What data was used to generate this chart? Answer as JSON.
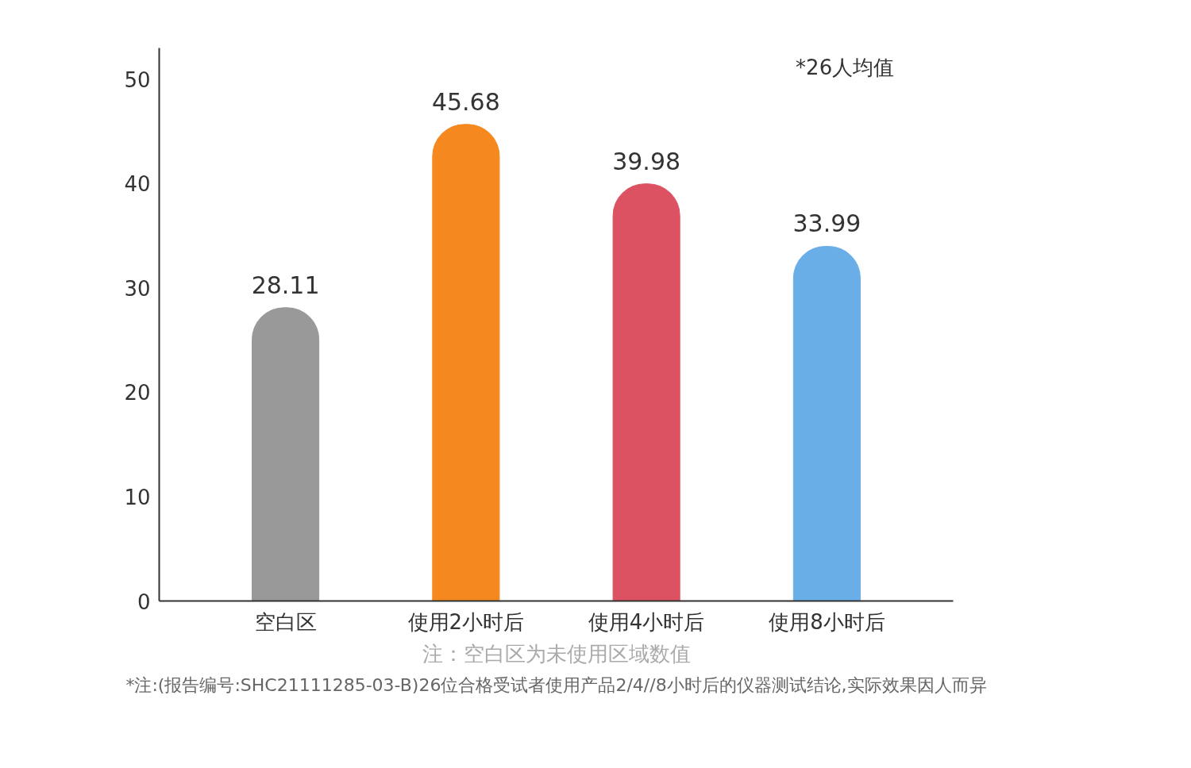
{
  "chart_data": {
    "type": "bar",
    "categories": [
      "空白区",
      "使用2小时后",
      "使用4小时后",
      "使用8小时后"
    ],
    "values": [
      28.11,
      45.68,
      39.98,
      33.99
    ],
    "colors": [
      "#999999",
      "#f5881f",
      "#dc5262",
      "#6aaee8"
    ],
    "ylim": [
      0,
      53
    ],
    "yticks": [
      0,
      10,
      20,
      30,
      40,
      50
    ],
    "grid": false,
    "data_labels": true,
    "annotations": [
      "*26人均值",
      "注：空白区为未使用区域数值",
      "*注:(报告编号:SHC21111285-03-B)26位合格受试者使用产品2/4//8小时后的仪器测试结论,实际效果因人而异"
    ]
  }
}
